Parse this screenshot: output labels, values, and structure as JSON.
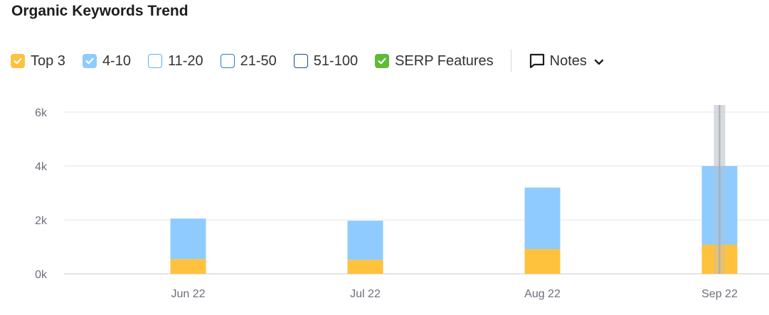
{
  "title": "Organic Keywords Trend",
  "legend": [
    {
      "label": "Top 3",
      "checked": true,
      "color": "#ffc23d",
      "border": "#ffc23d"
    },
    {
      "label": "4-10",
      "checked": true,
      "color": "#8fcbff",
      "border": "#8fcbff"
    },
    {
      "label": "11-20",
      "checked": false,
      "color": "#ffffff",
      "border": "#5bb3f5"
    },
    {
      "label": "21-50",
      "checked": false,
      "color": "#ffffff",
      "border": "#2a7bc9"
    },
    {
      "label": "51-100",
      "checked": false,
      "color": "#ffffff",
      "border": "#1b4a8a"
    },
    {
      "label": "SERP Features",
      "checked": true,
      "color": "#5dbb36",
      "border": "#5dbb36"
    }
  ],
  "notes_label": "Notes",
  "chart_data": {
    "type": "bar",
    "stacked": true,
    "categories": [
      "Jun 22",
      "Jul 22",
      "Aug 22",
      "Sep 22"
    ],
    "series": [
      {
        "name": "Top 3",
        "color": "#ffc23d",
        "values": [
          550,
          520,
          920,
          1080
        ]
      },
      {
        "name": "4-10",
        "color": "#8fcbff",
        "values": [
          1500,
          1450,
          2280,
          2920
        ]
      }
    ],
    "yticks": [
      "0k",
      "2k",
      "4k",
      "6k"
    ],
    "ylim": [
      0,
      6000
    ],
    "grid": true,
    "highlight_category": "Sep 22"
  }
}
